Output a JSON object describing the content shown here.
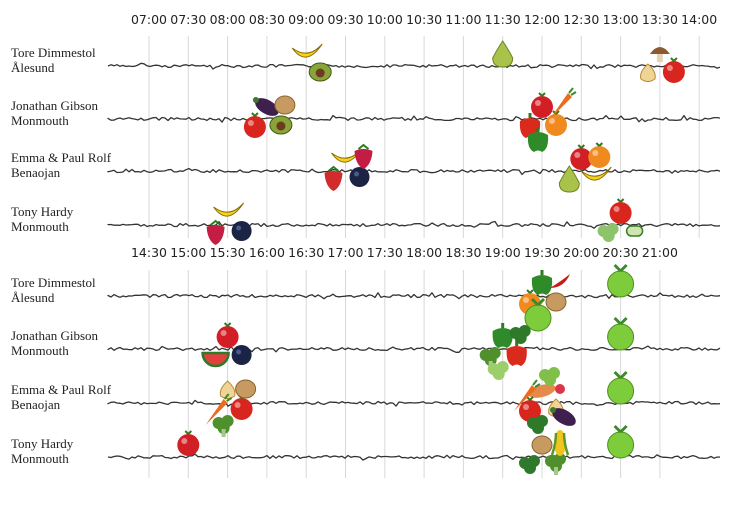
{
  "chart_data": {
    "type": "timeline",
    "people": [
      {
        "name": "Tore Dimmestol",
        "place": "Ålesund"
      },
      {
        "name": "Jonathan Gibson",
        "place": "Monmouth"
      },
      {
        "name": "Emma & Paul Rolf",
        "place": "Benaojan"
      },
      {
        "name": "Tony Hardy",
        "place": "Monmouth"
      }
    ],
    "panels": [
      {
        "times": [
          "07:00",
          "07:30",
          "08:00",
          "08:30",
          "09:00",
          "09:30",
          "10:00",
          "10:30",
          "11:00",
          "11:30",
          "12:00",
          "12:30",
          "13:00",
          "13:30",
          "14:00"
        ],
        "events": [
          {
            "person": 0,
            "time": "09:00",
            "foods": [
              "banana",
              "avocado"
            ]
          },
          {
            "person": 0,
            "time": "11:30",
            "foods": [
              "pear"
            ]
          },
          {
            "person": 0,
            "time": "13:30",
            "foods": [
              "mushroom",
              "tomato",
              "onion"
            ]
          },
          {
            "person": 1,
            "time": "08:30",
            "foods": [
              "eggplant",
              "avocado",
              "tomato",
              "potato"
            ]
          },
          {
            "person": 1,
            "time": "12:00",
            "foods": [
              "apple",
              "orange",
              "bell-pepper",
              "carrot",
              "green-pepper"
            ]
          },
          {
            "person": 2,
            "time": "09:30",
            "foods": [
              "banana",
              "blueberry",
              "strawberry",
              "raspberry"
            ]
          },
          {
            "person": 2,
            "time": "12:30",
            "foods": [
              "apple",
              "banana",
              "pear",
              "orange"
            ]
          },
          {
            "person": 3,
            "time": "08:00",
            "foods": [
              "banana",
              "blueberry",
              "raspberry"
            ]
          },
          {
            "person": 3,
            "time": "13:00",
            "foods": [
              "tomato",
              "cucumber",
              "lettuce"
            ]
          }
        ]
      },
      {
        "times": [
          "14:30",
          "15:00",
          "15:30",
          "16:00",
          "16:30",
          "17:00",
          "17:30",
          "18:00",
          "18:30",
          "19:00",
          "19:30",
          "20:00",
          "20:30",
          "21:00"
        ],
        "events": [
          {
            "person": 0,
            "time": "19:30",
            "foods": [
              "green-pepper",
              "potato",
              "orange",
              "chili",
              "lime"
            ]
          },
          {
            "person": 0,
            "time": "20:30",
            "foods": [
              "lime"
            ]
          },
          {
            "person": 1,
            "time": "15:30",
            "foods": [
              "apple",
              "blueberry",
              "watermelon"
            ]
          },
          {
            "person": 1,
            "time": "19:00",
            "foods": [
              "green-pepper",
              "bell-pepper",
              "broccoli",
              "spinach",
              "scallion"
            ]
          },
          {
            "person": 1,
            "time": "20:30",
            "foods": [
              "lime"
            ]
          },
          {
            "person": 2,
            "time": "15:30",
            "foods": [
              "onion",
              "tomato",
              "carrot",
              "potato",
              "broccoli"
            ]
          },
          {
            "person": 2,
            "time": "19:30",
            "foods": [
              "sweet-potato",
              "onion",
              "tomato",
              "radish",
              "spinach",
              "eggplant",
              "carrot",
              "peas"
            ]
          },
          {
            "person": 2,
            "time": "20:30",
            "foods": [
              "lime"
            ]
          },
          {
            "person": 3,
            "time": "15:00",
            "foods": [
              "apple"
            ]
          },
          {
            "person": 3,
            "time": "19:30",
            "foods": [
              "potato",
              "broccoli",
              "spinach",
              "corn"
            ]
          },
          {
            "person": 3,
            "time": "20:30",
            "foods": [
              "lime"
            ]
          }
        ]
      }
    ],
    "colors": {
      "banana": "#f5d31d",
      "avocado": "#8aa43a",
      "pear": "#a9c24a",
      "mushroom": "#c9a27a",
      "tomato": "#d8261f",
      "onion": "#f0d495",
      "eggplant": "#3e1f4e",
      "potato": "#c69a60",
      "apple": "#d21f26",
      "orange": "#f08a1e",
      "bell-pepper": "#d92a1c",
      "carrot": "#ec6b1d",
      "green-pepper": "#2f8b2a",
      "blueberry": "#1c2446",
      "strawberry": "#d22b2b",
      "raspberry": "#c31d43",
      "cucumber": "#cfe6b0",
      "lettuce": "#8cc36b",
      "chili": "#c81c16",
      "lime": "#7ccc3c",
      "watermelon": "#e2403d",
      "broccoli": "#4f8f2c",
      "spinach": "#2e7a2a",
      "scallion": "#9ccf6b",
      "sweet-potato": "#e58a4a",
      "radish": "#d9364a",
      "peas": "#7fbf4a",
      "corn": "#f2c41e"
    }
  }
}
